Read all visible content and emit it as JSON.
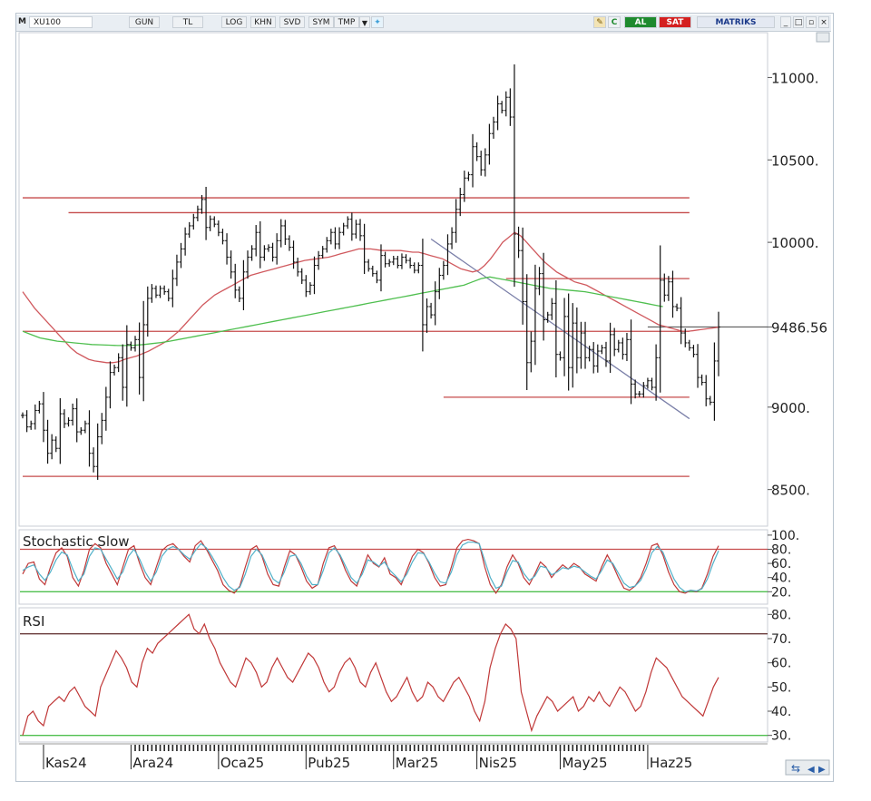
{
  "toolbar": {
    "m_label": "M",
    "symbol": "XU100",
    "period": "GUN",
    "currency": "TL",
    "log": "LOG",
    "khn": "KHN",
    "svd": "SVD",
    "sym": "SYM",
    "tmp": "TMP",
    "c_label": "C",
    "buy": "AL",
    "sell": "SAT",
    "brand": "MATRIKS",
    "colors": {
      "buy": "#1e8a2e",
      "sell": "#d42020",
      "brand": "#1b3a8a"
    }
  },
  "chart_data": [
    {
      "type": "ohlc",
      "panel": "price",
      "ylim": [
        8300,
        11250
      ],
      "y_ticks": [
        "11000.",
        "10500.",
        "10000.",
        "9486.56",
        "9000.",
        "8500."
      ],
      "y_tick_values": [
        11000,
        10500,
        10000,
        9486.56,
        9000,
        8500
      ],
      "last_value": 9486.56,
      "x_labels": [
        "Kas24",
        "Ara24",
        "Oca25",
        "Pub25",
        "Mar25",
        "Nis25",
        "May25",
        "Haz25"
      ],
      "x_label_index": [
        5,
        26,
        47,
        68,
        89,
        109,
        129,
        150
      ],
      "bar_color": "#111111",
      "close": [
        8950,
        8880,
        8900,
        8980,
        9020,
        8860,
        8720,
        8800,
        8750,
        8960,
        8900,
        8920,
        8990,
        8850,
        8860,
        8900,
        8720,
        8640,
        8820,
        8920,
        9060,
        9210,
        9240,
        9300,
        9120,
        9380,
        9360,
        9410,
        9180,
        9500,
        9660,
        9720,
        9680,
        9720,
        9700,
        9660,
        9780,
        9880,
        9960,
        10050,
        10100,
        10150,
        10200,
        10260,
        10090,
        10140,
        10110,
        10060,
        10010,
        9910,
        9820,
        9710,
        9660,
        9820,
        9910,
        9960,
        10060,
        9910,
        9960,
        9970,
        9910,
        10010,
        10100,
        10020,
        9970,
        9880,
        9820,
        9770,
        9700,
        9740,
        9860,
        9920,
        9960,
        10010,
        10060,
        9990,
        10060,
        10100,
        10140,
        10050,
        10110,
        10040,
        9880,
        9840,
        9810,
        9770,
        9920,
        9870,
        9880,
        9900,
        9860,
        9910,
        9890,
        9860,
        9830,
        9860,
        9500,
        9610,
        9560,
        9700,
        9800,
        9860,
        9990,
        10060,
        10200,
        10290,
        10390,
        10410,
        10580,
        10520,
        10440,
        10530,
        10660,
        10730,
        10840,
        10800,
        10880,
        10760,
        10050,
        9950,
        9640,
        9270,
        9400,
        9720,
        9810,
        9530,
        9560,
        9630,
        9320,
        9300,
        9550,
        9240,
        9510,
        9300,
        9450,
        9300,
        9350,
        9250,
        9340,
        9360,
        9280,
        9440,
        9350,
        9390,
        9320,
        9410,
        9140,
        9080,
        9080,
        9130,
        9160,
        9120,
        9300,
        9770,
        9680,
        9760,
        9610,
        9600,
        9450,
        9390,
        9360,
        9320,
        9180,
        9150,
        9050,
        9030,
        9280,
        9486
      ],
      "ohlc_note": "bars drawn as high-low with open/close ticks; series line values below",
      "series": [
        {
          "name": "",
          "color": "#d0595e",
          "values": [
            9700,
            9650,
            9600,
            9560,
            9520,
            9480,
            9440,
            9400,
            9360,
            9330,
            9310,
            9290,
            9280,
            9275,
            9270,
            9270,
            9275,
            9290,
            9300,
            9310,
            9325,
            9340,
            9360,
            9380,
            9400,
            9430,
            9460,
            9500,
            9540,
            9580,
            9620,
            9650,
            9680,
            9700,
            9720,
            9740,
            9760,
            9780,
            9800,
            9810,
            9820,
            9830,
            9840,
            9850,
            9860,
            9870,
            9880,
            9890,
            9895,
            9900,
            9905,
            9910,
            9920,
            9930,
            9940,
            9950,
            9960,
            9960,
            9960,
            9955,
            9950,
            9950,
            9950,
            9950,
            9945,
            9940,
            9940,
            9930,
            9920,
            9910,
            9900,
            9880,
            9860,
            9840,
            9830,
            9820,
            9830,
            9860,
            9900,
            9950,
            10000,
            10030,
            10060,
            10040,
            10000,
            9960,
            9920,
            9880,
            9850,
            9820,
            9800,
            9780,
            9760,
            9750,
            9740,
            9720,
            9700,
            9680,
            9660,
            9640,
            9620,
            9600,
            9580,
            9560,
            9540,
            9520,
            9500,
            9490,
            9480,
            9470,
            9460,
            9460,
            9465,
            9470,
            9475,
            9480,
            9485
          ]
        },
        {
          "name": "",
          "color": "#4fbf4f",
          "values": [
            9460,
            9440,
            9420,
            9410,
            9400,
            9395,
            9390,
            9385,
            9380,
            9378,
            9376,
            9374,
            9374,
            9376,
            9380,
            9386,
            9392,
            9400,
            9410,
            9420,
            9430,
            9440,
            9450,
            9460,
            9470,
            9480,
            9490,
            9500,
            9510,
            9520,
            9530,
            9540,
            9550,
            9560,
            9570,
            9580,
            9590,
            9600,
            9610,
            9620,
            9630,
            9640,
            9650,
            9660,
            9670,
            9680,
            9690,
            9700,
            9710,
            9720,
            9730,
            9740,
            9760,
            9780,
            9790,
            9780,
            9770,
            9760,
            9750,
            9740,
            9730,
            9720,
            9715,
            9710,
            9705,
            9700,
            9690,
            9680,
            9670,
            9660,
            9650,
            9640,
            9630,
            9620,
            9610
          ]
        }
      ],
      "horizontal_lines": [
        {
          "y": 10270,
          "color": "#c64b4b",
          "x_from": 0,
          "x_to": 160
        },
        {
          "y": 10180,
          "color": "#c64b4b",
          "x_from": 11,
          "x_to": 160
        },
        {
          "y": 9780,
          "color": "#c64b4b",
          "x_from": 116,
          "x_to": 160
        },
        {
          "y": 9460,
          "color": "#c64b4b",
          "x_from": 0,
          "x_to": 160
        },
        {
          "y": 9060,
          "color": "#c64b4b",
          "x_from": 101,
          "x_to": 160
        },
        {
          "y": 8580,
          "color": "#c64b4b",
          "x_from": 0,
          "x_to": 160
        }
      ],
      "trendline": {
        "color": "#7a7fa8",
        "from": [
          98,
          10020
        ],
        "to": [
          160,
          8930
        ]
      },
      "last_value_line": {
        "color": "#444444",
        "from": 150,
        "y": 9486.56
      }
    },
    {
      "type": "line",
      "panel": "stochastic",
      "title": "Stochastic Slow",
      "ylim": [
        5,
        105
      ],
      "y_ticks": [
        "100.",
        "80.",
        "60.",
        "40.",
        "20."
      ],
      "y_tick_values": [
        100,
        80,
        60,
        40,
        20
      ],
      "levels": [
        {
          "value": 80,
          "color": "#c64b4b"
        },
        {
          "value": 20,
          "color": "#4fbf4f"
        }
      ],
      "series": [
        {
          "name": "",
          "color": "#c03838",
          "values": [
            45,
            60,
            62,
            38,
            30,
            55,
            75,
            82,
            70,
            40,
            28,
            50,
            80,
            88,
            82,
            60,
            45,
            30,
            55,
            80,
            85,
            60,
            40,
            30,
            55,
            78,
            85,
            88,
            80,
            70,
            62,
            85,
            92,
            80,
            65,
            50,
            30,
            22,
            18,
            28,
            55,
            80,
            85,
            70,
            45,
            30,
            28,
            55,
            78,
            72,
            55,
            35,
            25,
            30,
            60,
            82,
            85,
            70,
            50,
            35,
            28,
            50,
            72,
            60,
            55,
            68,
            45,
            40,
            30,
            50,
            70,
            80,
            75,
            60,
            40,
            28,
            30,
            55,
            82,
            92,
            94,
            92,
            88,
            55,
            30,
            18,
            30,
            55,
            72,
            60,
            40,
            30,
            45,
            62,
            55,
            40,
            50,
            58,
            52,
            60,
            55,
            45,
            40,
            35,
            55,
            72,
            58,
            40,
            25,
            22,
            28,
            40,
            60,
            85,
            88,
            72,
            48,
            30,
            20,
            18,
            22,
            20,
            25,
            45,
            70,
            85
          ]
        },
        {
          "name": "",
          "color": "#50b0c8",
          "values": [
            50,
            55,
            58,
            45,
            36,
            48,
            65,
            76,
            72,
            52,
            35,
            45,
            70,
            82,
            80,
            66,
            52,
            38,
            48,
            70,
            80,
            66,
            48,
            35,
            48,
            70,
            80,
            84,
            80,
            72,
            66,
            78,
            88,
            82,
            70,
            56,
            40,
            28,
            22,
            26,
            45,
            70,
            80,
            72,
            54,
            38,
            32,
            48,
            70,
            72,
            60,
            42,
            30,
            30,
            50,
            75,
            82,
            72,
            56,
            40,
            32,
            45,
            65,
            62,
            56,
            62,
            50,
            42,
            34,
            45,
            62,
            75,
            74,
            62,
            46,
            34,
            32,
            48,
            72,
            86,
            90,
            90,
            88,
            64,
            40,
            25,
            28,
            48,
            64,
            62,
            46,
            36,
            42,
            56,
            54,
            44,
            48,
            54,
            52,
            56,
            54,
            48,
            42,
            38,
            50,
            65,
            60,
            46,
            32,
            26,
            28,
            36,
            52,
            75,
            84,
            76,
            56,
            38,
            26,
            20,
            22,
            21,
            24,
            38,
            60,
            78
          ]
        }
      ]
    },
    {
      "type": "line",
      "panel": "rsi",
      "title": "RSI",
      "ylim": [
        28,
        82
      ],
      "y_ticks": [
        "80.",
        "70.",
        "60.",
        "50.",
        "40.",
        "30."
      ],
      "y_tick_values": [
        80,
        70,
        60,
        50,
        40,
        30
      ],
      "levels": [
        {
          "value": 72,
          "color": "#6b3c3c"
        },
        {
          "value": 30,
          "color": "#4fbf4f"
        }
      ],
      "series": [
        {
          "name": "",
          "color": "#c03838",
          "values": [
            30,
            38,
            40,
            36,
            34,
            42,
            44,
            46,
            44,
            48,
            50,
            46,
            42,
            40,
            38,
            50,
            55,
            60,
            65,
            62,
            58,
            52,
            50,
            60,
            66,
            64,
            68,
            70,
            72,
            74,
            76,
            78,
            80,
            74,
            72,
            76,
            70,
            66,
            60,
            56,
            52,
            50,
            56,
            62,
            60,
            56,
            50,
            52,
            58,
            62,
            58,
            54,
            52,
            56,
            60,
            64,
            62,
            58,
            52,
            48,
            50,
            56,
            60,
            62,
            58,
            52,
            50,
            56,
            60,
            54,
            48,
            44,
            46,
            50,
            54,
            48,
            44,
            46,
            52,
            50,
            46,
            44,
            48,
            52,
            54,
            50,
            46,
            40,
            36,
            44,
            58,
            66,
            72,
            76,
            74,
            70,
            48,
            40,
            32,
            38,
            42,
            46,
            44,
            40,
            42,
            44,
            46,
            40,
            42,
            46,
            44,
            48,
            44,
            42,
            46,
            50,
            48,
            44,
            40,
            42,
            48,
            56,
            62,
            60,
            58,
            54,
            50,
            46,
            44,
            42,
            40,
            38,
            44,
            50,
            54
          ]
        }
      ]
    }
  ]
}
